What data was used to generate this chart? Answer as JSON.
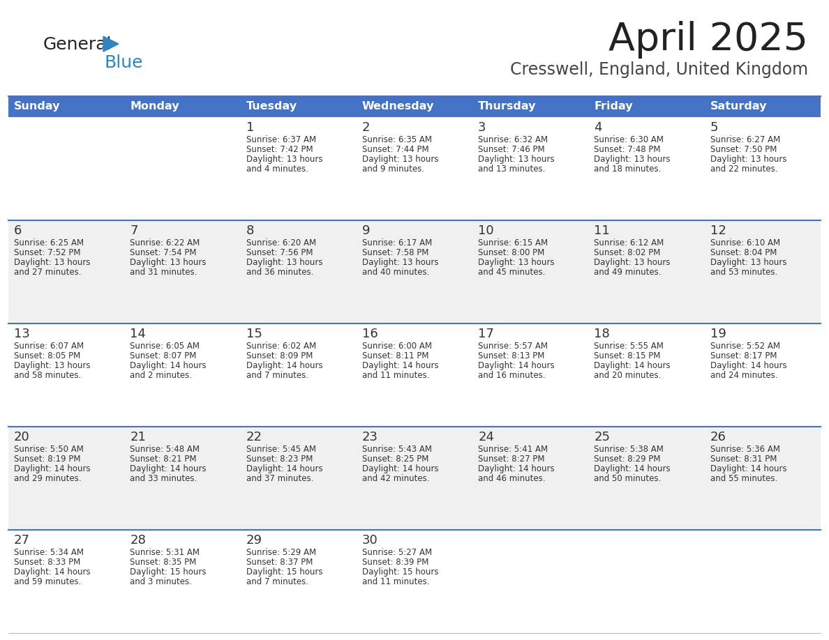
{
  "title": "April 2025",
  "subtitle": "Cresswell, England, United Kingdom",
  "header_bg": "#4472C4",
  "header_text_color": "#FFFFFF",
  "row_bg_odd": "#FFFFFF",
  "row_bg_even": "#F0F0F0",
  "separator_color": "#4472C4",
  "text_color": "#333333",
  "days_of_week": [
    "Sunday",
    "Monday",
    "Tuesday",
    "Wednesday",
    "Thursday",
    "Friday",
    "Saturday"
  ],
  "weeks": [
    [
      {
        "day": "",
        "info": ""
      },
      {
        "day": "",
        "info": ""
      },
      {
        "day": "1",
        "info": "Sunrise: 6:37 AM\nSunset: 7:42 PM\nDaylight: 13 hours\nand 4 minutes."
      },
      {
        "day": "2",
        "info": "Sunrise: 6:35 AM\nSunset: 7:44 PM\nDaylight: 13 hours\nand 9 minutes."
      },
      {
        "day": "3",
        "info": "Sunrise: 6:32 AM\nSunset: 7:46 PM\nDaylight: 13 hours\nand 13 minutes."
      },
      {
        "day": "4",
        "info": "Sunrise: 6:30 AM\nSunset: 7:48 PM\nDaylight: 13 hours\nand 18 minutes."
      },
      {
        "day": "5",
        "info": "Sunrise: 6:27 AM\nSunset: 7:50 PM\nDaylight: 13 hours\nand 22 minutes."
      }
    ],
    [
      {
        "day": "6",
        "info": "Sunrise: 6:25 AM\nSunset: 7:52 PM\nDaylight: 13 hours\nand 27 minutes."
      },
      {
        "day": "7",
        "info": "Sunrise: 6:22 AM\nSunset: 7:54 PM\nDaylight: 13 hours\nand 31 minutes."
      },
      {
        "day": "8",
        "info": "Sunrise: 6:20 AM\nSunset: 7:56 PM\nDaylight: 13 hours\nand 36 minutes."
      },
      {
        "day": "9",
        "info": "Sunrise: 6:17 AM\nSunset: 7:58 PM\nDaylight: 13 hours\nand 40 minutes."
      },
      {
        "day": "10",
        "info": "Sunrise: 6:15 AM\nSunset: 8:00 PM\nDaylight: 13 hours\nand 45 minutes."
      },
      {
        "day": "11",
        "info": "Sunrise: 6:12 AM\nSunset: 8:02 PM\nDaylight: 13 hours\nand 49 minutes."
      },
      {
        "day": "12",
        "info": "Sunrise: 6:10 AM\nSunset: 8:04 PM\nDaylight: 13 hours\nand 53 minutes."
      }
    ],
    [
      {
        "day": "13",
        "info": "Sunrise: 6:07 AM\nSunset: 8:05 PM\nDaylight: 13 hours\nand 58 minutes."
      },
      {
        "day": "14",
        "info": "Sunrise: 6:05 AM\nSunset: 8:07 PM\nDaylight: 14 hours\nand 2 minutes."
      },
      {
        "day": "15",
        "info": "Sunrise: 6:02 AM\nSunset: 8:09 PM\nDaylight: 14 hours\nand 7 minutes."
      },
      {
        "day": "16",
        "info": "Sunrise: 6:00 AM\nSunset: 8:11 PM\nDaylight: 14 hours\nand 11 minutes."
      },
      {
        "day": "17",
        "info": "Sunrise: 5:57 AM\nSunset: 8:13 PM\nDaylight: 14 hours\nand 16 minutes."
      },
      {
        "day": "18",
        "info": "Sunrise: 5:55 AM\nSunset: 8:15 PM\nDaylight: 14 hours\nand 20 minutes."
      },
      {
        "day": "19",
        "info": "Sunrise: 5:52 AM\nSunset: 8:17 PM\nDaylight: 14 hours\nand 24 minutes."
      }
    ],
    [
      {
        "day": "20",
        "info": "Sunrise: 5:50 AM\nSunset: 8:19 PM\nDaylight: 14 hours\nand 29 minutes."
      },
      {
        "day": "21",
        "info": "Sunrise: 5:48 AM\nSunset: 8:21 PM\nDaylight: 14 hours\nand 33 minutes."
      },
      {
        "day": "22",
        "info": "Sunrise: 5:45 AM\nSunset: 8:23 PM\nDaylight: 14 hours\nand 37 minutes."
      },
      {
        "day": "23",
        "info": "Sunrise: 5:43 AM\nSunset: 8:25 PM\nDaylight: 14 hours\nand 42 minutes."
      },
      {
        "day": "24",
        "info": "Sunrise: 5:41 AM\nSunset: 8:27 PM\nDaylight: 14 hours\nand 46 minutes."
      },
      {
        "day": "25",
        "info": "Sunrise: 5:38 AM\nSunset: 8:29 PM\nDaylight: 14 hours\nand 50 minutes."
      },
      {
        "day": "26",
        "info": "Sunrise: 5:36 AM\nSunset: 8:31 PM\nDaylight: 14 hours\nand 55 minutes."
      }
    ],
    [
      {
        "day": "27",
        "info": "Sunrise: 5:34 AM\nSunset: 8:33 PM\nDaylight: 14 hours\nand 59 minutes."
      },
      {
        "day": "28",
        "info": "Sunrise: 5:31 AM\nSunset: 8:35 PM\nDaylight: 15 hours\nand 3 minutes."
      },
      {
        "day": "29",
        "info": "Sunrise: 5:29 AM\nSunset: 8:37 PM\nDaylight: 15 hours\nand 7 minutes."
      },
      {
        "day": "30",
        "info": "Sunrise: 5:27 AM\nSunset: 8:39 PM\nDaylight: 15 hours\nand 11 minutes."
      },
      {
        "day": "",
        "info": ""
      },
      {
        "day": "",
        "info": ""
      },
      {
        "day": "",
        "info": ""
      }
    ]
  ],
  "logo_text1": "General",
  "logo_text2": "Blue",
  "logo_text1_color": "#222222",
  "logo_text2_color": "#2E86C1",
  "logo_triangle_color": "#2E86C1",
  "fig_width": 11.88,
  "fig_height": 9.18,
  "dpi": 100
}
